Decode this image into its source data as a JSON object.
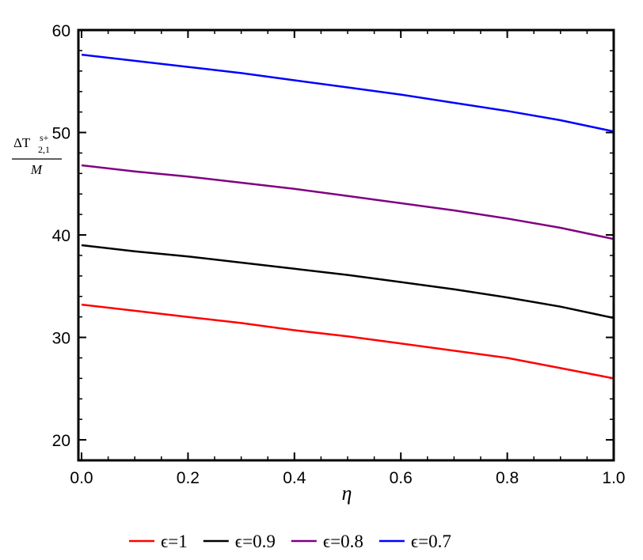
{
  "chart_data": {
    "type": "line",
    "xlabel": "η",
    "ylabel": {
      "numerator_base": "ΔT",
      "superscript": "s+",
      "subscript": "2,1",
      "denominator": "M"
    },
    "xlim": [
      0,
      1
    ],
    "ylim": [
      18,
      60
    ],
    "x_ticks": [
      "0.0",
      "0.2",
      "0.4",
      "0.6",
      "0.8",
      "1.0"
    ],
    "y_ticks": [
      "20",
      "30",
      "40",
      "50",
      "60"
    ],
    "x_tick_values": [
      0,
      0.2,
      0.4,
      0.6,
      0.8,
      1.0
    ],
    "y_tick_values": [
      20,
      30,
      40,
      50,
      60
    ],
    "x": [
      0,
      0.1,
      0.2,
      0.3,
      0.4,
      0.5,
      0.6,
      0.7,
      0.8,
      0.9,
      1.0
    ],
    "series": [
      {
        "name": "ϵ=1",
        "color": "#ff0000",
        "values": [
          33.2,
          32.6,
          32.0,
          31.4,
          30.7,
          30.1,
          29.4,
          28.7,
          28.0,
          27.0,
          26.0
        ]
      },
      {
        "name": "ϵ=0.9",
        "color": "#000000",
        "values": [
          39.0,
          38.4,
          37.9,
          37.3,
          36.7,
          36.1,
          35.4,
          34.7,
          33.9,
          33.0,
          31.9
        ]
      },
      {
        "name": "ϵ=0.8",
        "color": "#800080",
        "values": [
          46.8,
          46.2,
          45.7,
          45.1,
          44.5,
          43.8,
          43.1,
          42.4,
          41.6,
          40.7,
          39.6
        ]
      },
      {
        "name": "ϵ=0.7",
        "color": "#0000ff",
        "values": [
          57.6,
          57.0,
          56.4,
          55.8,
          55.1,
          54.4,
          53.7,
          52.9,
          52.1,
          51.2,
          50.1
        ]
      }
    ],
    "grid": false,
    "legend_position": "bottom"
  }
}
